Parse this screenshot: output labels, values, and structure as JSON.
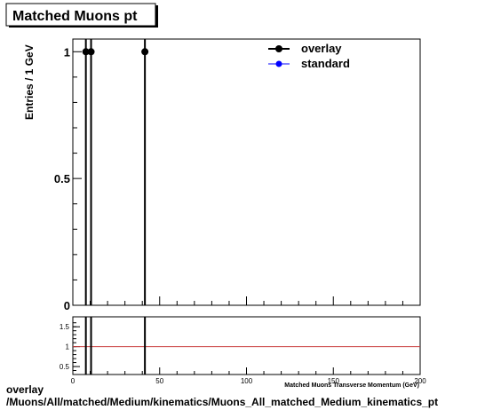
{
  "chart_data": [
    {
      "type": "scatter",
      "title": "Matched Muons pt",
      "ylabel": "Entries / 1 GeV",
      "xlim": [
        0,
        200
      ],
      "ylim": [
        0,
        1.05
      ],
      "yticks": [
        0,
        0.5,
        1
      ],
      "yticklabels": [
        "0",
        "0.5",
        "1"
      ],
      "legend": {
        "position": "top-right",
        "entries": [
          "overlay",
          "standard"
        ]
      },
      "series": [
        {
          "name": "overlay",
          "color": "#000000",
          "points": [
            {
              "x": 7.5,
              "y": 1
            },
            {
              "x": 10.5,
              "y": 1
            },
            {
              "x": 41.5,
              "y": 1
            }
          ]
        },
        {
          "name": "standard",
          "color": "#0000ff",
          "points": []
        }
      ]
    },
    {
      "type": "line",
      "xlabel": "Matched Muons Transverse Momentum (GeV)",
      "xlim": [
        0,
        200
      ],
      "ylim": [
        0.3,
        1.75
      ],
      "xticks": [
        0,
        50,
        100,
        150,
        200
      ],
      "xticklabels": [
        "0",
        "50",
        "100",
        "150",
        "200"
      ],
      "yticks": [
        0.5,
        1,
        1.5
      ],
      "yticklabels": [
        "0.5",
        "1",
        "1.5"
      ],
      "reference_line": {
        "y": 1,
        "color": "#c83c3c"
      },
      "marker_lines_x": [
        7.5,
        10.5,
        41.5
      ]
    }
  ],
  "footer": {
    "line1": "overlay",
    "line2": "/Muons/All/matched/Medium/kinematics/Muons_All_matched_Medium_kinematics_pt"
  }
}
